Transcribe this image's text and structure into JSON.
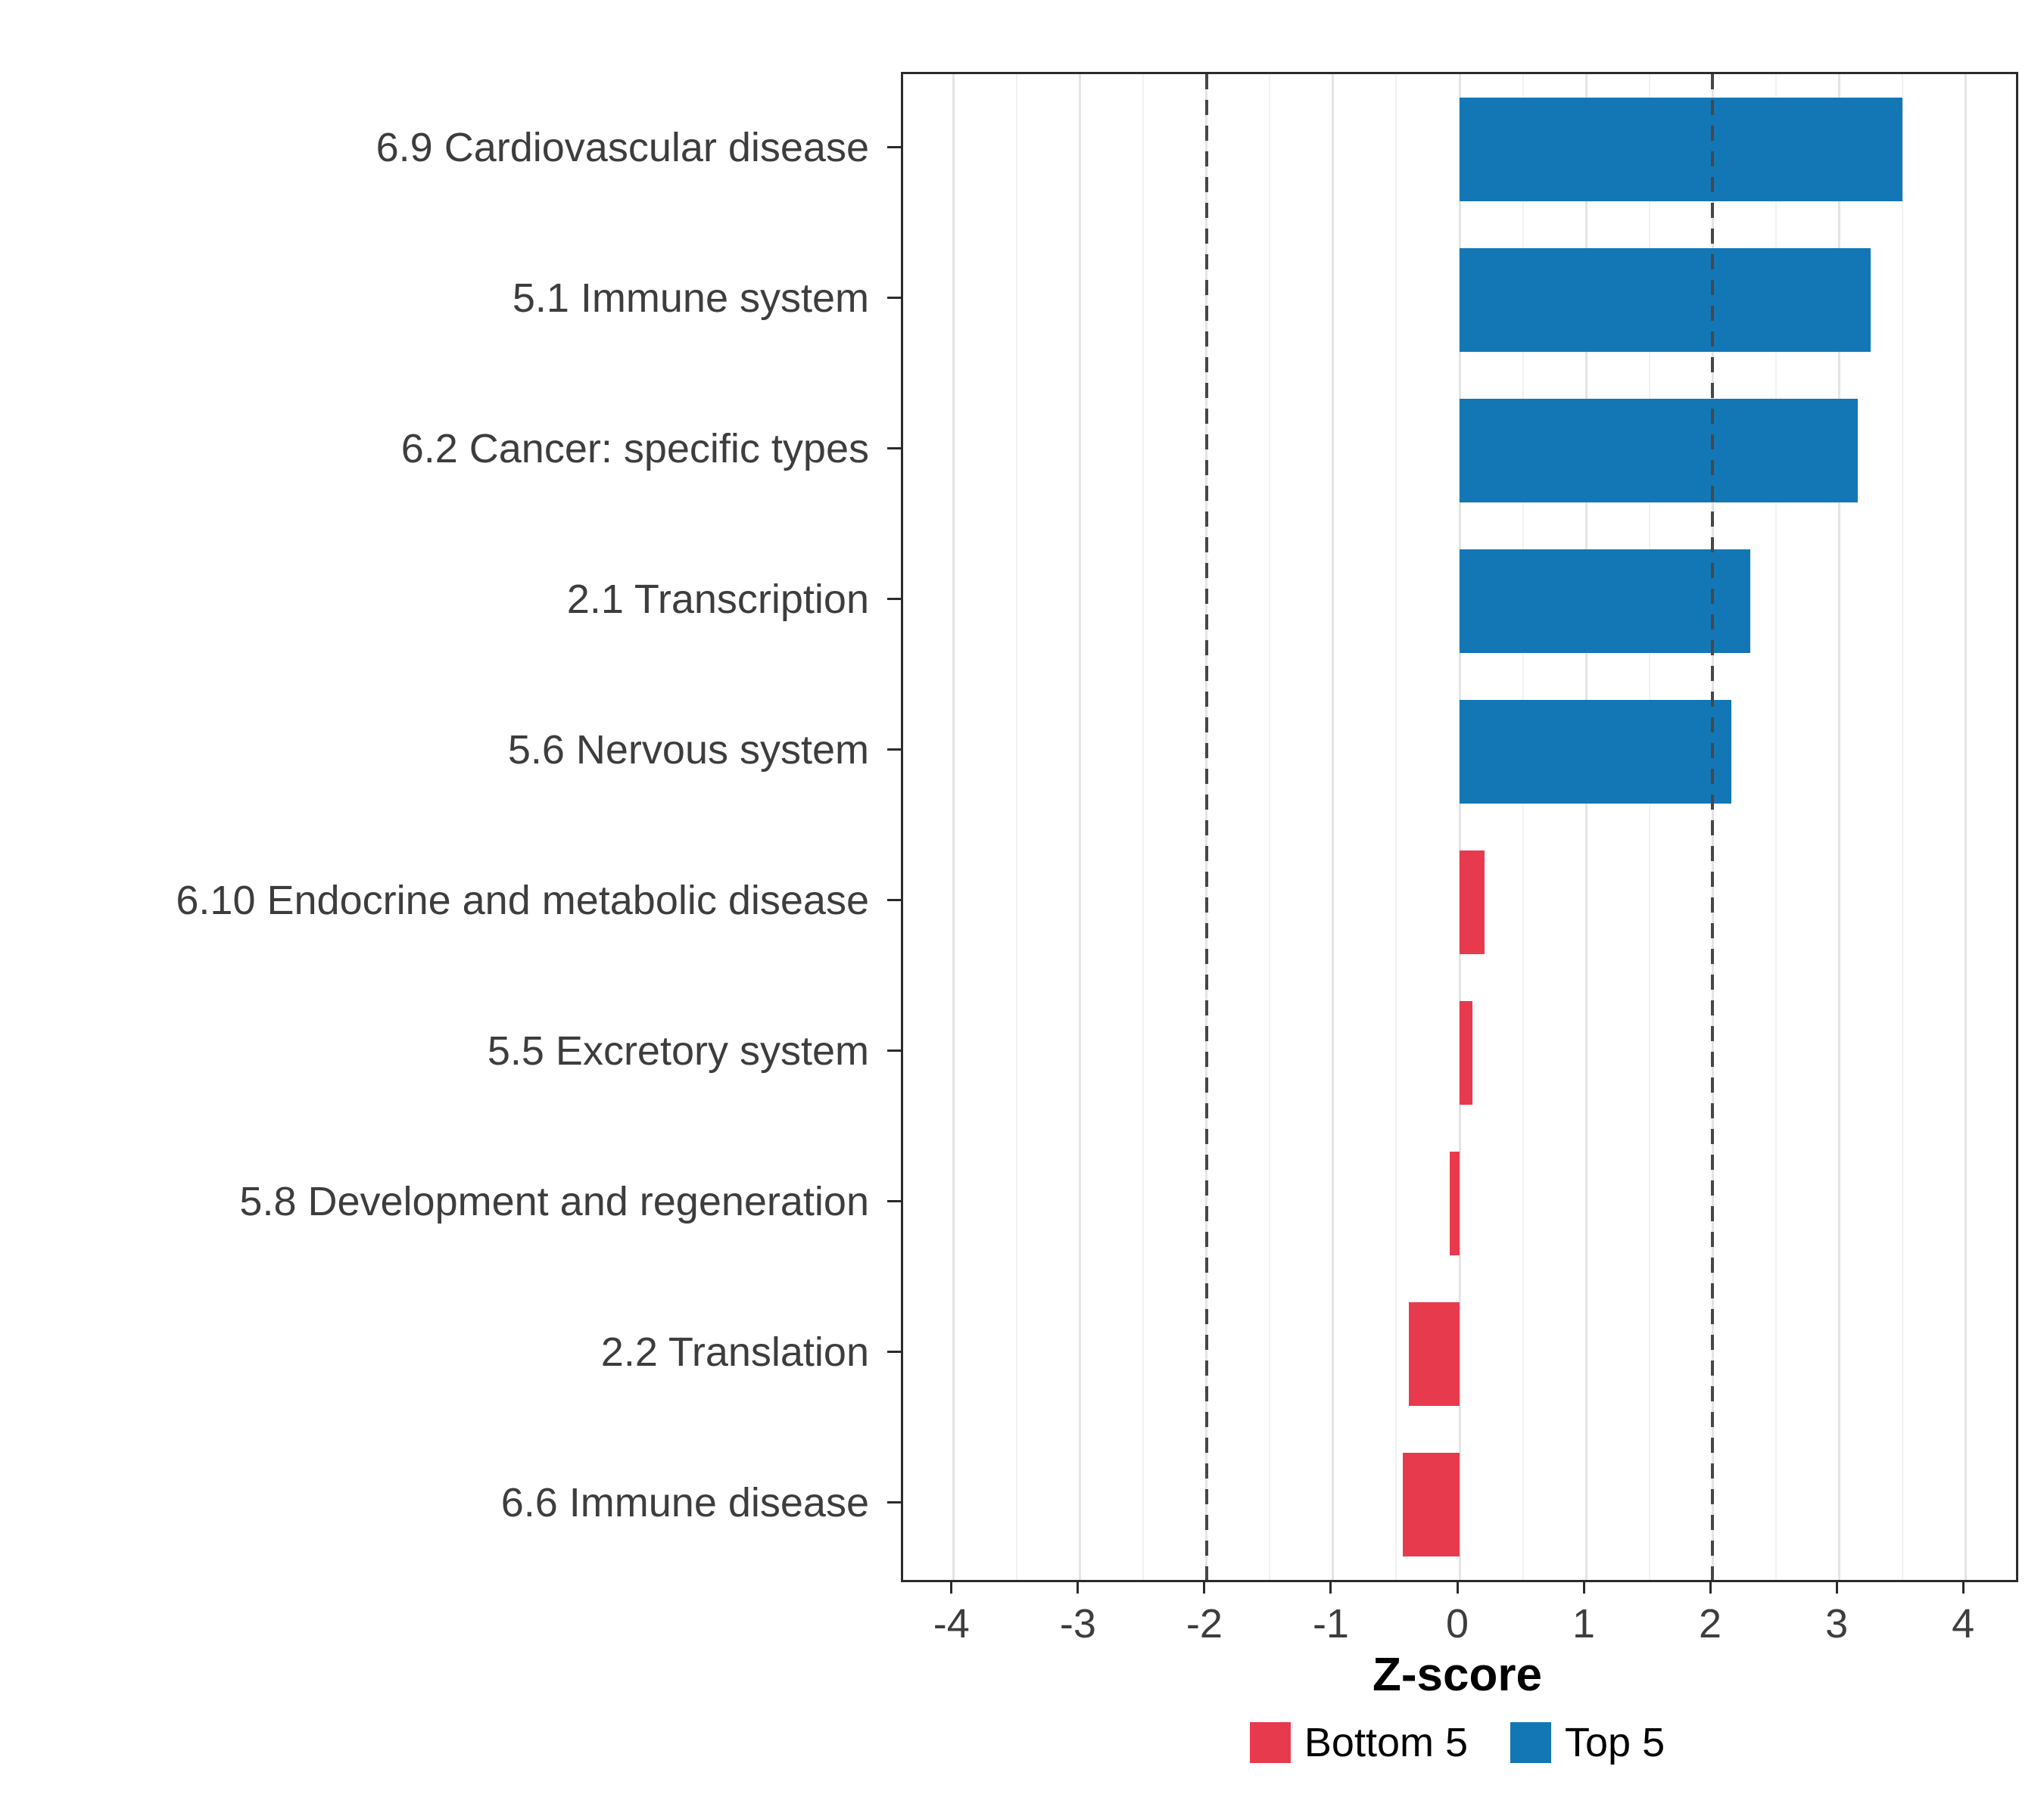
{
  "chart_data": {
    "type": "bar",
    "orientation": "horizontal",
    "title": "",
    "xlabel": "Z-score",
    "xlim": [
      -4.4,
      4.4
    ],
    "x_ticks": [
      -4,
      -3,
      -2,
      -1,
      0,
      1,
      2,
      3,
      4
    ],
    "reference_lines": [
      -2,
      2
    ],
    "grid": true,
    "categories": [
      "6.9 Cardiovascular disease",
      "5.1 Immune system",
      "6.2 Cancer: specific types",
      "2.1 Transcription",
      "5.6 Nervous system",
      "6.10 Endocrine and metabolic disease",
      "5.5 Excretory system",
      "5.8 Development and regeneration",
      "2.2 Translation",
      "6.6 Immune disease"
    ],
    "values": [
      3.5,
      3.25,
      3.15,
      2.3,
      2.15,
      0.2,
      0.1,
      -0.08,
      -0.4,
      -0.45
    ],
    "groups": [
      "Top 5",
      "Top 5",
      "Top 5",
      "Top 5",
      "Top 5",
      "Bottom 5",
      "Bottom 5",
      "Bottom 5",
      "Bottom 5",
      "Bottom 5"
    ],
    "colors": {
      "Top 5": "#1377B6",
      "Bottom 5": "#E83A4D"
    },
    "legend": {
      "position": "bottom",
      "items": [
        {
          "label": "Bottom 5",
          "color": "#E83A4D"
        },
        {
          "label": "Top 5",
          "color": "#1377B6"
        }
      ]
    }
  }
}
